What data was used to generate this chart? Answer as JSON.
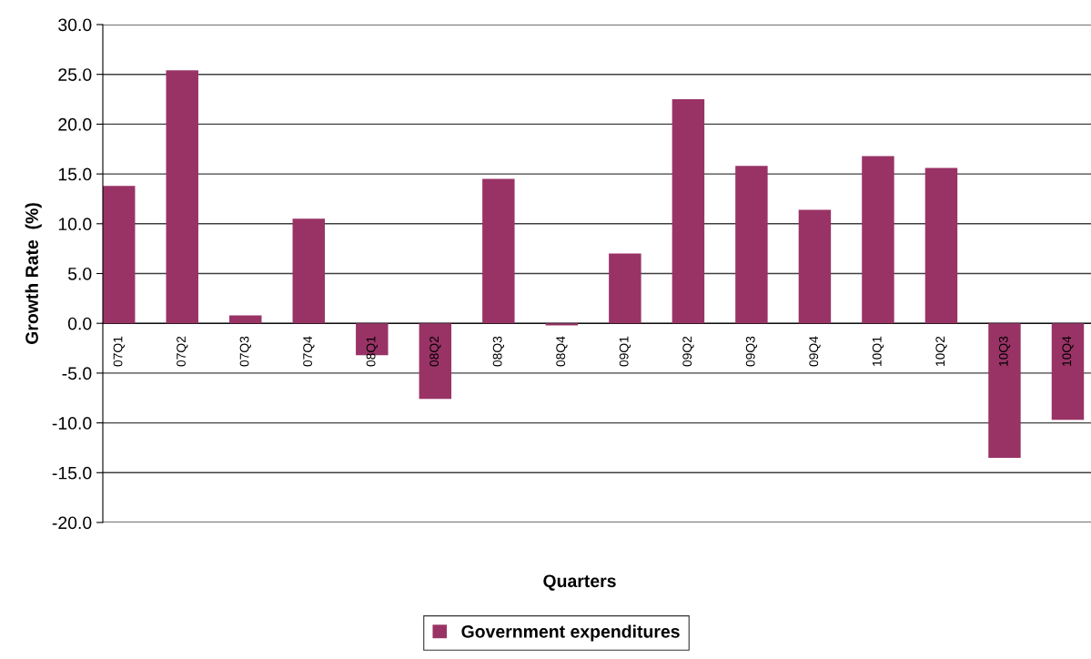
{
  "chart_data": {
    "type": "bar",
    "xlabel": "Quarters",
    "ylabel": "Growth Rate  (%)",
    "categories": [
      "07Q1",
      "07Q2",
      "07Q3",
      "07Q4",
      "08Q1",
      "08Q2",
      "08Q3",
      "08Q4",
      "09Q1",
      "09Q2",
      "09Q3",
      "09Q4",
      "10Q1",
      "10Q2",
      "10Q3",
      "10Q4"
    ],
    "series": [
      {
        "name": "Government expenditures",
        "color": "#993366",
        "values": [
          13.8,
          25.4,
          0.8,
          10.5,
          -3.2,
          -7.6,
          14.5,
          -0.2,
          7.0,
          22.5,
          15.8,
          11.4,
          16.8,
          15.6,
          -13.5,
          -9.7
        ]
      }
    ],
    "ylim": [
      -20,
      30
    ],
    "yticks": [
      {
        "value": -20,
        "label": "-20.0"
      },
      {
        "value": -15,
        "label": "-15.0"
      },
      {
        "value": -10,
        "label": "-10.0"
      },
      {
        "value": -5,
        "label": "-5.0"
      },
      {
        "value": 0,
        "label": "0.0"
      },
      {
        "value": 5,
        "label": "5.0"
      },
      {
        "value": 10,
        "label": "10.0"
      },
      {
        "value": 15,
        "label": "15.0"
      },
      {
        "value": 20,
        "label": "20.0"
      },
      {
        "value": 25,
        "label": "25.0"
      },
      {
        "value": 30,
        "label": "30.0"
      }
    ],
    "grid": "y",
    "legend": "bottom"
  }
}
